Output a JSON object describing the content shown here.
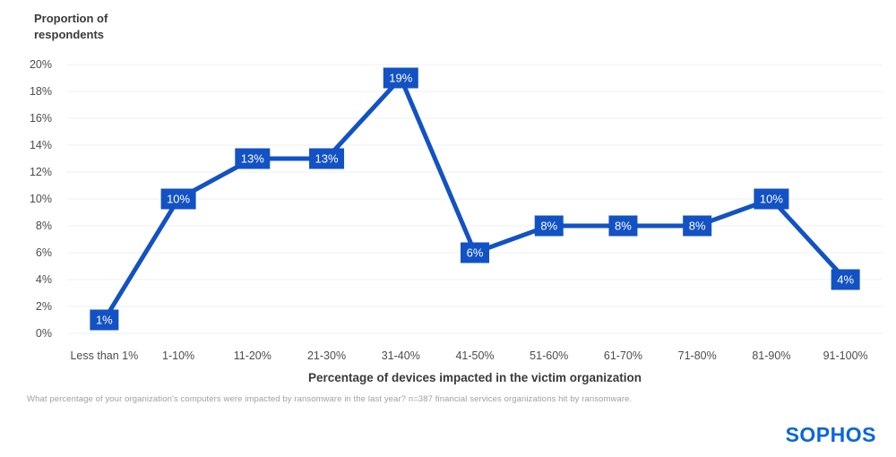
{
  "axis": {
    "y_title_line1": "Proportion of",
    "y_title_line2": "respondents"
  },
  "chart_data": {
    "type": "line",
    "categories": [
      "Less than 1%",
      "1-10%",
      "11-20%",
      "21-30%",
      "31-40%",
      "41-50%",
      "51-60%",
      "61-70%",
      "71-80%",
      "81-90%",
      "91-100%"
    ],
    "values": [
      1,
      10,
      13,
      13,
      19,
      6,
      8,
      8,
      8,
      10,
      4
    ],
    "data_labels": [
      "1%",
      "10%",
      "13%",
      "13%",
      "19%",
      "6%",
      "8%",
      "8%",
      "8%",
      "10%",
      "4%"
    ],
    "xlabel": "Percentage of devices impacted in the victim organization",
    "ylabel": "Proportion of respondents",
    "ylim": [
      0,
      20
    ],
    "y_tick_step": 2,
    "y_tick_labels": [
      "0%",
      "2%",
      "4%",
      "6%",
      "8%",
      "10%",
      "12%",
      "14%",
      "16%",
      "18%",
      "20%"
    ],
    "grid": "horizontal",
    "legend": "none",
    "colors": {
      "line": "#1252c4",
      "data_label_bg": "#1252c4",
      "data_label_text": "#ffffff",
      "gridline": "#f3f6f6",
      "tick_text": "#4c4c4c",
      "axis_title_text": "#3a3a3a"
    }
  },
  "footnote": {
    "text": "What percentage of your organization's computers were impacted by ransomware in the last year? n=387 financial services organizations hit by ransomware."
  },
  "logo": {
    "text": "SOPHOS",
    "color": "#0a65e2"
  }
}
